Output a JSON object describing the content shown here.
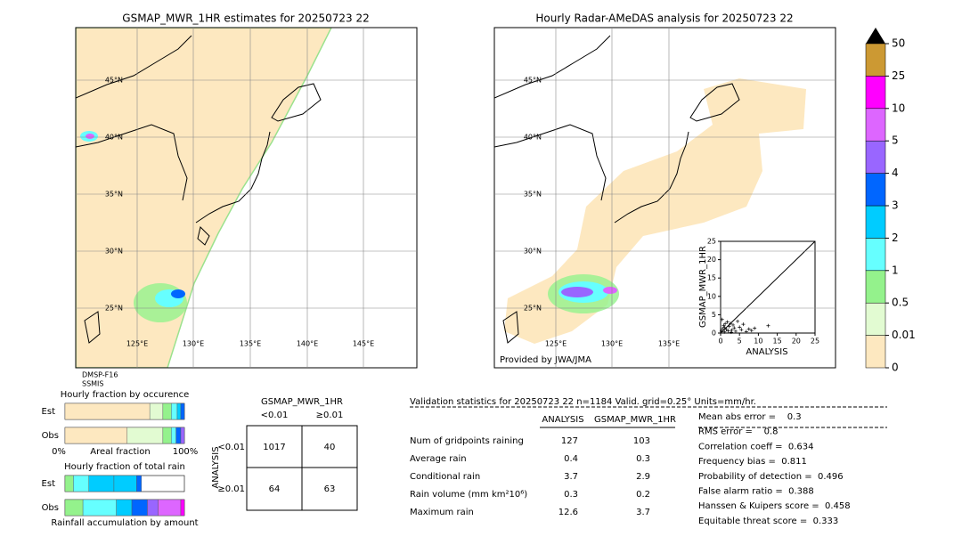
{
  "left_map": {
    "title": "GSMAP_MWR_1HR estimates for 20250723 22",
    "lat_labels": [
      "45°N",
      "40°N",
      "35°N",
      "30°N",
      "25°N"
    ],
    "lon_labels": [
      "125°E",
      "130°E",
      "135°E",
      "140°E",
      "145°E"
    ],
    "satellite_note": [
      "DMSP-F16",
      "SSMIS"
    ]
  },
  "right_map": {
    "title": "Hourly Radar-AMeDAS analysis for 20250723 22",
    "lat_labels": [
      "45°N",
      "40°N",
      "35°N",
      "30°N",
      "25°N"
    ],
    "lon_labels": [
      "125°E",
      "130°E",
      "135°E"
    ],
    "credit": "Provided by JWA/JMA"
  },
  "colorbar": {
    "ticks": [
      0,
      0.01,
      0.5,
      1,
      2,
      3,
      4,
      5,
      10,
      25,
      50
    ],
    "colors": [
      "#fde8c0",
      "#e2fbd2",
      "#94f28c",
      "#66ffff",
      "#00ccff",
      "#0066ff",
      "#9966ff",
      "#dd66ff",
      "#ff00ff",
      "#cc9933"
    ]
  },
  "scatter": {
    "xlabel": "ANALYSIS",
    "ylabel": "GSMAP_MWR_1HR",
    "xlim": [
      0,
      25
    ],
    "ylim": [
      0,
      25
    ],
    "xticks": [
      0,
      5,
      10,
      15,
      20,
      25
    ],
    "yticks": [
      0,
      5,
      10,
      15,
      20,
      25
    ],
    "x": [
      0.2,
      0.5,
      0.8,
      1.0,
      1.2,
      1.5,
      1.8,
      2.0,
      2.3,
      2.6,
      3.0,
      3.3,
      3.6,
      4.0,
      4.5,
      5.0,
      5.5,
      6.0,
      6.8,
      7.5,
      8.2,
      9.0,
      12.6,
      0.4,
      1.1,
      2.8
    ],
    "y": [
      0.5,
      1.2,
      2.0,
      0.3,
      2.5,
      1.0,
      3.0,
      0.6,
      1.8,
      2.6,
      0.8,
      2.2,
      1.4,
      0.5,
      3.2,
      1.6,
      0.9,
      2.4,
      0.4,
      1.1,
      0.7,
      1.3,
      2.0,
      3.7,
      1.5,
      0.2
    ]
  },
  "occurrence": {
    "title": "Hourly fraction by occurence",
    "rows": [
      "Est",
      "Obs"
    ],
    "axis_labels": [
      "0%",
      "Areal fraction",
      "100%"
    ],
    "est": [
      71,
      11,
      7,
      5,
      3,
      3
    ],
    "obs": [
      52,
      30,
      7,
      4,
      4,
      3
    ]
  },
  "amount": {
    "title": "Hourly fraction of total rain",
    "rows": [
      "Est",
      "Obs"
    ],
    "xlabel": "Rainfall accumulation by amount",
    "est": [
      7,
      13,
      21,
      19,
      4
    ],
    "obs": [
      15,
      28,
      13,
      13,
      9,
      19,
      3
    ]
  },
  "contingency": {
    "title": "GSMAP_MWR_1HR",
    "col_headers": [
      "<0.01",
      "≥0.01"
    ],
    "row_label": "ANALYSIS",
    "row_headers": [
      "<0.01",
      "≥0.01"
    ],
    "cells": [
      [
        1017,
        40
      ],
      [
        64,
        63
      ]
    ]
  },
  "validation": {
    "header": "Validation statistics for 20250723 22  n=1184 Valid. grid=0.25° Units=mm/hr.",
    "columns": [
      "ANALYSIS",
      "GSMAP_MWR_1HR"
    ],
    "rows": [
      {
        "label": "Num of gridpoints raining",
        "values": [
          127,
          103
        ]
      },
      {
        "label": "Average rain",
        "values": [
          0.4,
          0.3
        ]
      },
      {
        "label": "Conditional rain",
        "values": [
          3.7,
          2.9
        ]
      },
      {
        "label": "Rain volume (mm km²10⁶)",
        "values": [
          0.3,
          0.2
        ]
      },
      {
        "label": "Maximum rain",
        "values": [
          12.6,
          3.7
        ]
      }
    ],
    "scores": [
      "Mean abs error =    0.3",
      "RMS error =    0.8",
      "Correlation coeff =  0.634",
      "Frequency bias =  0.811",
      "Probability of detection =  0.496",
      "False alarm ratio =  0.388",
      "Hanssen & Kuipers score =  0.458",
      "Equitable threat score =  0.333"
    ]
  }
}
